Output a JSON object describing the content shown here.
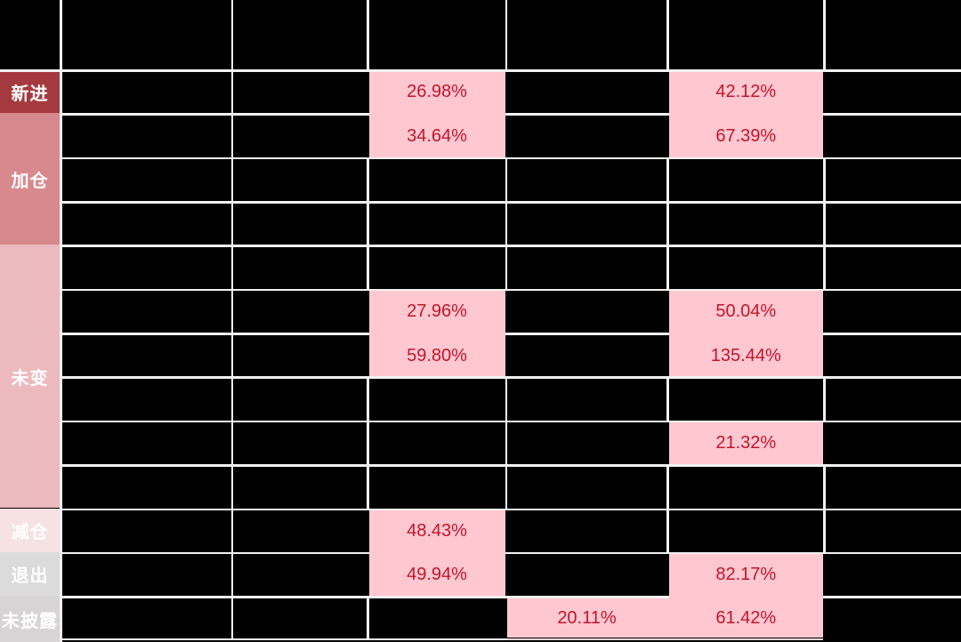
{
  "table": {
    "colors": {
      "cell_bg": "#000000",
      "grid_line": "#f1f1f1",
      "highlight_bg": "#ffc8d1",
      "highlight_text": "#c2152b",
      "label_text": "#ffffff",
      "bottom_edge_pink": "#f6d5da"
    }
  },
  "row_labels": [
    {
      "label": "新进",
      "row_start": 1,
      "row_end": 1,
      "bg": "#a43a3f"
    },
    {
      "label": "加仓",
      "row_start": 2,
      "row_end": 4,
      "bg": "#d8898d"
    },
    {
      "label": "未变",
      "row_start": 5,
      "row_end": 10,
      "bg": "#ecb9be"
    },
    {
      "label": "减仓",
      "row_start": 11,
      "row_end": 11,
      "bg": "#f6e2e3"
    },
    {
      "label": "退出",
      "row_start": 12,
      "row_end": 12,
      "bg": "#dcdbdb"
    },
    {
      "label": "未披露",
      "row_start": 13,
      "row_end": 13,
      "bg": "#d6d4d4"
    }
  ],
  "highlights": [
    {
      "col": 4,
      "row_start": 1,
      "row_end": 2,
      "values": [
        "26.98%",
        "34.64%"
      ]
    },
    {
      "col": 6,
      "row_start": 1,
      "row_end": 2,
      "values": [
        "42.12%",
        "67.39%"
      ]
    },
    {
      "col": 4,
      "row_start": 6,
      "row_end": 7,
      "values": [
        "27.96%",
        "59.80%"
      ]
    },
    {
      "col": 6,
      "row_start": 6,
      "row_end": 7,
      "values": [
        "50.04%",
        "135.44%"
      ]
    },
    {
      "col": 6,
      "row_start": 9,
      "row_end": 9,
      "values": [
        "21.32%"
      ]
    },
    {
      "col": 4,
      "row_start": 11,
      "row_end": 12,
      "values": [
        "48.43%",
        "49.94%"
      ]
    },
    {
      "col": 6,
      "row_start": 12,
      "row_end": 13,
      "values": [
        "82.17%",
        "61.42%"
      ]
    },
    {
      "col": 5,
      "row_start": 13,
      "row_end": 13,
      "values": [
        "20.11%"
      ]
    }
  ],
  "chart_data": {
    "type": "table",
    "row_groups": [
      {
        "label": "新进",
        "rows": [
          1
        ]
      },
      {
        "label": "加仓",
        "rows": [
          2,
          3,
          4
        ]
      },
      {
        "label": "未变",
        "rows": [
          5,
          6,
          7,
          8,
          9,
          10
        ]
      },
      {
        "label": "减仓",
        "rows": [
          11
        ]
      },
      {
        "label": "退出",
        "rows": [
          12
        ]
      },
      {
        "label": "未披露",
        "rows": [
          13
        ]
      }
    ],
    "columns": 7,
    "rows": 13,
    "visible_values": [
      {
        "row": 1,
        "col": 4,
        "value": "26.98%"
      },
      {
        "row": 1,
        "col": 6,
        "value": "42.12%"
      },
      {
        "row": 2,
        "col": 4,
        "value": "34.64%"
      },
      {
        "row": 2,
        "col": 6,
        "value": "67.39%"
      },
      {
        "row": 6,
        "col": 4,
        "value": "27.96%"
      },
      {
        "row": 6,
        "col": 6,
        "value": "50.04%"
      },
      {
        "row": 7,
        "col": 4,
        "value": "59.80%"
      },
      {
        "row": 7,
        "col": 6,
        "value": "135.44%"
      },
      {
        "row": 9,
        "col": 6,
        "value": "21.32%"
      },
      {
        "row": 11,
        "col": 4,
        "value": "48.43%"
      },
      {
        "row": 12,
        "col": 4,
        "value": "49.94%"
      },
      {
        "row": 12,
        "col": 6,
        "value": "82.17%"
      },
      {
        "row": 13,
        "col": 5,
        "value": "20.11%"
      },
      {
        "row": 13,
        "col": 6,
        "value": "61.42%"
      }
    ],
    "notes": "All other cells are solid black (values hidden); pink cells highlight disclosed percentage changes"
  }
}
